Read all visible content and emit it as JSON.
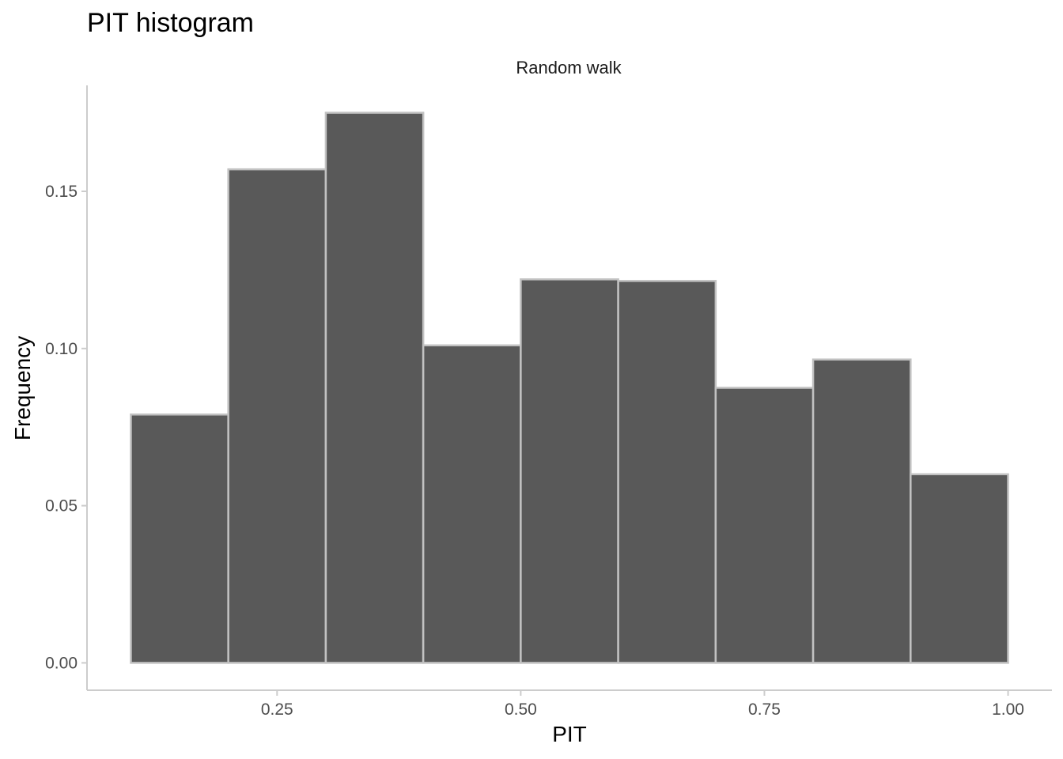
{
  "chart_data": {
    "type": "bar",
    "title": "PIT histogram",
    "facet": "Random walk",
    "xlabel": "PIT",
    "ylabel": "Frequency",
    "bins": [
      {
        "x0": 0.1,
        "x1": 0.2,
        "value": 0.079
      },
      {
        "x0": 0.2,
        "x1": 0.3,
        "value": 0.157
      },
      {
        "x0": 0.3,
        "x1": 0.4,
        "value": 0.175
      },
      {
        "x0": 0.4,
        "x1": 0.5,
        "value": 0.101
      },
      {
        "x0": 0.5,
        "x1": 0.6,
        "value": 0.122
      },
      {
        "x0": 0.6,
        "x1": 0.7,
        "value": 0.1215
      },
      {
        "x0": 0.7,
        "x1": 0.8,
        "value": 0.0875
      },
      {
        "x0": 0.8,
        "x1": 0.9,
        "value": 0.0965
      },
      {
        "x0": 0.9,
        "x1": 1.0,
        "value": 0.06
      }
    ],
    "xlim": [
      0.055,
      1.045
    ],
    "ylim": [
      -0.0087,
      0.1837
    ],
    "xticks": [
      0.25,
      0.5,
      0.75,
      1.0
    ],
    "xtick_labels": [
      "0.25",
      "0.50",
      "0.75",
      "1.00"
    ],
    "yticks": [
      0.0,
      0.05,
      0.1,
      0.15
    ],
    "ytick_labels": [
      "0.00",
      "0.05",
      "0.10",
      "0.15"
    ],
    "grid": false,
    "colors": {
      "bar_fill": "#595959",
      "bar_outline": "#c2c2c2",
      "axis": "#cccccc"
    }
  }
}
